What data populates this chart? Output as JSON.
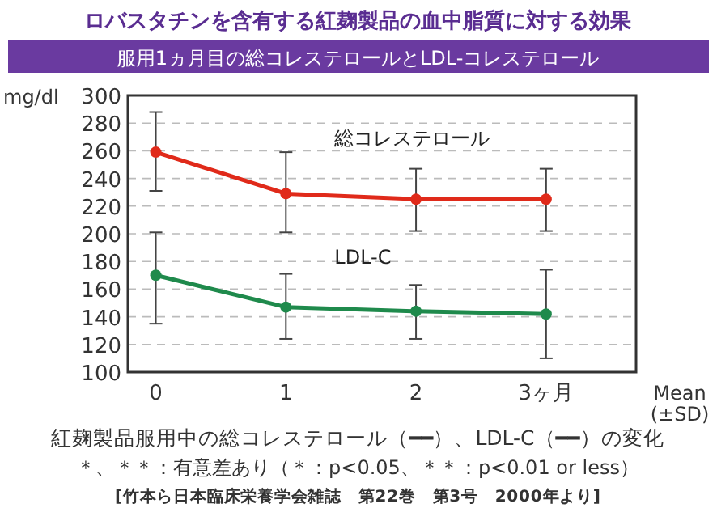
{
  "chart_data": {
    "type": "line",
    "title": "ロバスタチンを含有する紅麹製品の血中脂質に対する効果",
    "subtitle": "服用1ヵ月目の総コレステロールとLDL-コレステロール",
    "ylabel": "mg/dl",
    "categories": [
      "0",
      "1",
      "2",
      "3ヶ月"
    ],
    "series": [
      {
        "name": "総コレステロール",
        "color": "#e02a1a",
        "values": [
          259,
          229,
          225,
          225
        ],
        "errors": [
          [
            231,
            288
          ],
          [
            201,
            259
          ],
          [
            202,
            247
          ],
          [
            202,
            247
          ]
        ]
      },
      {
        "name": "LDL-C",
        "color": "#1f8a4c",
        "values": [
          170,
          147,
          144,
          142
        ],
        "errors": [
          [
            135,
            201
          ],
          [
            124,
            171
          ],
          [
            124,
            163
          ],
          [
            110,
            174
          ]
        ]
      }
    ],
    "ylim": [
      100,
      300
    ],
    "yticks": [
      100,
      120,
      140,
      160,
      180,
      200,
      220,
      240,
      260,
      280,
      300
    ],
    "grid": "y",
    "marker": "circle",
    "line_style": "solid",
    "annotations": [
      "Mean (±SD)",
      "紅麹製品服用中の総コレステロール（━━）、LDL-C（━━）の変化",
      "＊、＊＊：有意差あり（＊：p<0.05、＊＊：p<0.01 or less）",
      "[竹本ら日本臨床栄養学会雑誌　第22巻　第3号　2000年より]"
    ]
  }
}
